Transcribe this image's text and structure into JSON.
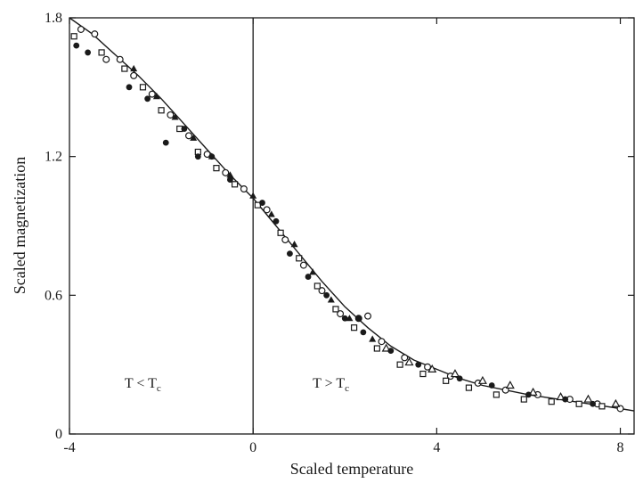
{
  "chart_data": {
    "type": "scatter",
    "title": "",
    "xlabel": "Scaled temperature",
    "ylabel": "Scaled magnetization",
    "xlim": [
      -4,
      8.3
    ],
    "ylim": [
      0,
      1.8
    ],
    "x_ticks": [
      -4,
      0,
      4,
      8
    ],
    "x_tick_labels": [
      "-4",
      "0",
      "4",
      "8"
    ],
    "y_ticks": [
      0,
      0.6,
      1.2,
      1.8
    ],
    "y_tick_labels": [
      "0",
      "0.6",
      "1.2",
      "1.8"
    ],
    "vertical_line_x": 0,
    "grid": false,
    "annotations": {
      "below": {
        "text": "T < T",
        "subscript": "c",
        "x": -2.8,
        "y": 0.2
      },
      "above": {
        "text": "T > T",
        "subscript": "c",
        "x": 1.3,
        "y": 0.2
      }
    },
    "curve": {
      "x": [
        -4,
        -3.5,
        -3,
        -2.5,
        -2,
        -1.5,
        -1,
        -0.5,
        0,
        0.5,
        1,
        1.5,
        2,
        2.5,
        3,
        3.5,
        4,
        4.5,
        5,
        5.5,
        6,
        6.5,
        7,
        7.5,
        8,
        8.3
      ],
      "y": [
        1.8,
        1.73,
        1.64,
        1.55,
        1.45,
        1.34,
        1.23,
        1.12,
        1.02,
        0.9,
        0.78,
        0.66,
        0.55,
        0.46,
        0.38,
        0.32,
        0.28,
        0.24,
        0.21,
        0.19,
        0.17,
        0.155,
        0.14,
        0.125,
        0.11,
        0.1
      ]
    },
    "series": [
      {
        "marker": "open-circle",
        "x": [
          -3.75,
          -3.45,
          -3.2,
          -2.9,
          -2.6,
          -2.2,
          -1.8,
          -1.4,
          -1.0,
          -0.6,
          -0.2,
          0.3,
          0.7,
          1.1,
          1.5,
          1.9,
          2.3,
          2.5,
          2.8,
          3.3,
          3.8,
          4.3,
          4.9,
          5.5,
          6.2,
          6.9,
          7.5,
          8.0
        ],
        "y": [
          1.75,
          1.73,
          1.62,
          1.62,
          1.55,
          1.47,
          1.38,
          1.29,
          1.21,
          1.13,
          1.06,
          0.97,
          0.84,
          0.73,
          0.62,
          0.52,
          0.5,
          0.51,
          0.4,
          0.33,
          0.29,
          0.25,
          0.22,
          0.19,
          0.17,
          0.15,
          0.13,
          0.11
        ]
      },
      {
        "marker": "open-square",
        "x": [
          -3.9,
          -3.3,
          -2.8,
          -2.4,
          -2.0,
          -1.6,
          -1.2,
          -0.8,
          -0.4,
          0.1,
          0.6,
          1.0,
          1.4,
          1.8,
          2.2,
          2.7,
          3.2,
          3.7,
          4.2,
          4.7,
          5.3,
          5.9,
          6.5,
          7.1,
          7.6
        ],
        "y": [
          1.72,
          1.65,
          1.58,
          1.5,
          1.4,
          1.32,
          1.22,
          1.15,
          1.08,
          0.99,
          0.87,
          0.76,
          0.64,
          0.54,
          0.46,
          0.37,
          0.3,
          0.26,
          0.23,
          0.2,
          0.17,
          0.15,
          0.14,
          0.13,
          0.12
        ]
      },
      {
        "marker": "filled-triangle",
        "x": [
          -2.6,
          -2.1,
          -1.7,
          -1.3,
          -0.9,
          -0.5,
          0.0,
          0.4,
          0.9,
          1.3,
          1.7,
          2.1,
          2.6
        ],
        "y": [
          1.58,
          1.46,
          1.37,
          1.28,
          1.2,
          1.12,
          1.03,
          0.95,
          0.82,
          0.7,
          0.58,
          0.5,
          0.41
        ]
      },
      {
        "marker": "open-triangle",
        "x": [
          2.9,
          3.4,
          3.9,
          4.4,
          5.0,
          5.6,
          6.1,
          6.7,
          7.3,
          7.9
        ],
        "y": [
          0.37,
          0.31,
          0.28,
          0.26,
          0.23,
          0.21,
          0.18,
          0.16,
          0.15,
          0.13
        ]
      },
      {
        "marker": "filled-circle",
        "x": [
          -3.85,
          -3.6,
          -2.7,
          -2.3,
          -1.9,
          -1.5,
          -1.2,
          -0.9,
          -0.5,
          0.2,
          0.5,
          0.8,
          1.2,
          1.6,
          2.0,
          2.3,
          2.4,
          3.0,
          3.6,
          4.5,
          5.2,
          6.0,
          6.8,
          7.4
        ],
        "y": [
          1.68,
          1.65,
          1.5,
          1.45,
          1.26,
          1.32,
          1.2,
          1.2,
          1.1,
          1.0,
          0.92,
          0.78,
          0.68,
          0.6,
          0.5,
          0.5,
          0.44,
          0.36,
          0.3,
          0.24,
          0.21,
          0.17,
          0.15,
          0.13
        ]
      }
    ]
  }
}
